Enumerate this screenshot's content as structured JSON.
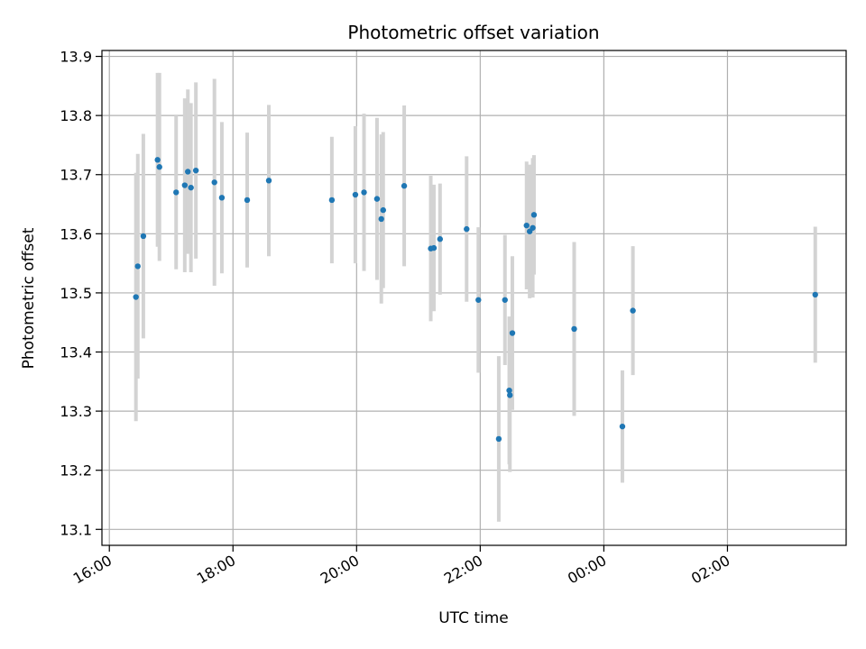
{
  "chart_data": {
    "type": "scatter",
    "title": "Photometric offset variation",
    "xlabel": "UTC time",
    "ylabel": "Photometric offset",
    "x_unit": "hours since 16:00 UTC",
    "x_ticks": [
      "16:00",
      "18:00",
      "20:00",
      "22:00",
      "00:00",
      "02:00"
    ],
    "y_ticks": [
      "13.1",
      "13.2",
      "13.3",
      "13.4",
      "13.5",
      "13.6",
      "13.7",
      "13.8",
      "13.9"
    ],
    "xlim": [
      -0.12,
      11.92
    ],
    "ylim": [
      13.073,
      13.91
    ],
    "grid": true,
    "marker_color": "#1f77b4",
    "errorbar_color": "#d3d3d3",
    "points": [
      {
        "t": 0.43,
        "y": 13.493,
        "err": 0.21
      },
      {
        "t": 0.46,
        "y": 13.545,
        "err": 0.19
      },
      {
        "t": 0.55,
        "y": 13.596,
        "err": 0.173
      },
      {
        "t": 0.78,
        "y": 13.725,
        "err": 0.147
      },
      {
        "t": 0.81,
        "y": 13.713,
        "err": 0.159
      },
      {
        "t": 1.08,
        "y": 13.67,
        "err": 0.13
      },
      {
        "t": 1.22,
        "y": 13.682,
        "err": 0.147
      },
      {
        "t": 1.27,
        "y": 13.705,
        "err": 0.139
      },
      {
        "t": 1.32,
        "y": 13.678,
        "err": 0.143
      },
      {
        "t": 1.4,
        "y": 13.707,
        "err": 0.149
      },
      {
        "t": 1.7,
        "y": 13.687,
        "err": 0.175
      },
      {
        "t": 1.82,
        "y": 13.661,
        "err": 0.128
      },
      {
        "t": 2.23,
        "y": 13.657,
        "err": 0.114
      },
      {
        "t": 2.58,
        "y": 13.69,
        "err": 0.128
      },
      {
        "t": 3.6,
        "y": 13.657,
        "err": 0.107
      },
      {
        "t": 3.98,
        "y": 13.666,
        "err": 0.116
      },
      {
        "t": 4.12,
        "y": 13.67,
        "err": 0.133
      },
      {
        "t": 4.33,
        "y": 13.659,
        "err": 0.137
      },
      {
        "t": 4.4,
        "y": 13.625,
        "err": 0.143
      },
      {
        "t": 4.43,
        "y": 13.64,
        "err": 0.132
      },
      {
        "t": 4.77,
        "y": 13.681,
        "err": 0.136
      },
      {
        "t": 5.2,
        "y": 13.575,
        "err": 0.123
      },
      {
        "t": 5.25,
        "y": 13.576,
        "err": 0.107
      },
      {
        "t": 5.35,
        "y": 13.591,
        "err": 0.094
      },
      {
        "t": 5.78,
        "y": 13.608,
        "err": 0.123
      },
      {
        "t": 5.97,
        "y": 13.488,
        "err": 0.123
      },
      {
        "t": 6.3,
        "y": 13.253,
        "err": 0.14
      },
      {
        "t": 6.4,
        "y": 13.488,
        "err": 0.11
      },
      {
        "t": 6.47,
        "y": 13.335,
        "err": 0.125
      },
      {
        "t": 6.48,
        "y": 13.327,
        "err": 0.13
      },
      {
        "t": 6.52,
        "y": 13.432,
        "err": 0.13
      },
      {
        "t": 6.75,
        "y": 13.614,
        "err": 0.108
      },
      {
        "t": 6.8,
        "y": 13.604,
        "err": 0.113
      },
      {
        "t": 6.85,
        "y": 13.61,
        "err": 0.118
      },
      {
        "t": 6.87,
        "y": 13.632,
        "err": 0.101
      },
      {
        "t": 7.52,
        "y": 13.439,
        "err": 0.147
      },
      {
        "t": 8.3,
        "y": 13.274,
        "err": 0.095
      },
      {
        "t": 8.47,
        "y": 13.47,
        "err": 0.109
      },
      {
        "t": 11.42,
        "y": 13.497,
        "err": 0.115
      }
    ]
  }
}
